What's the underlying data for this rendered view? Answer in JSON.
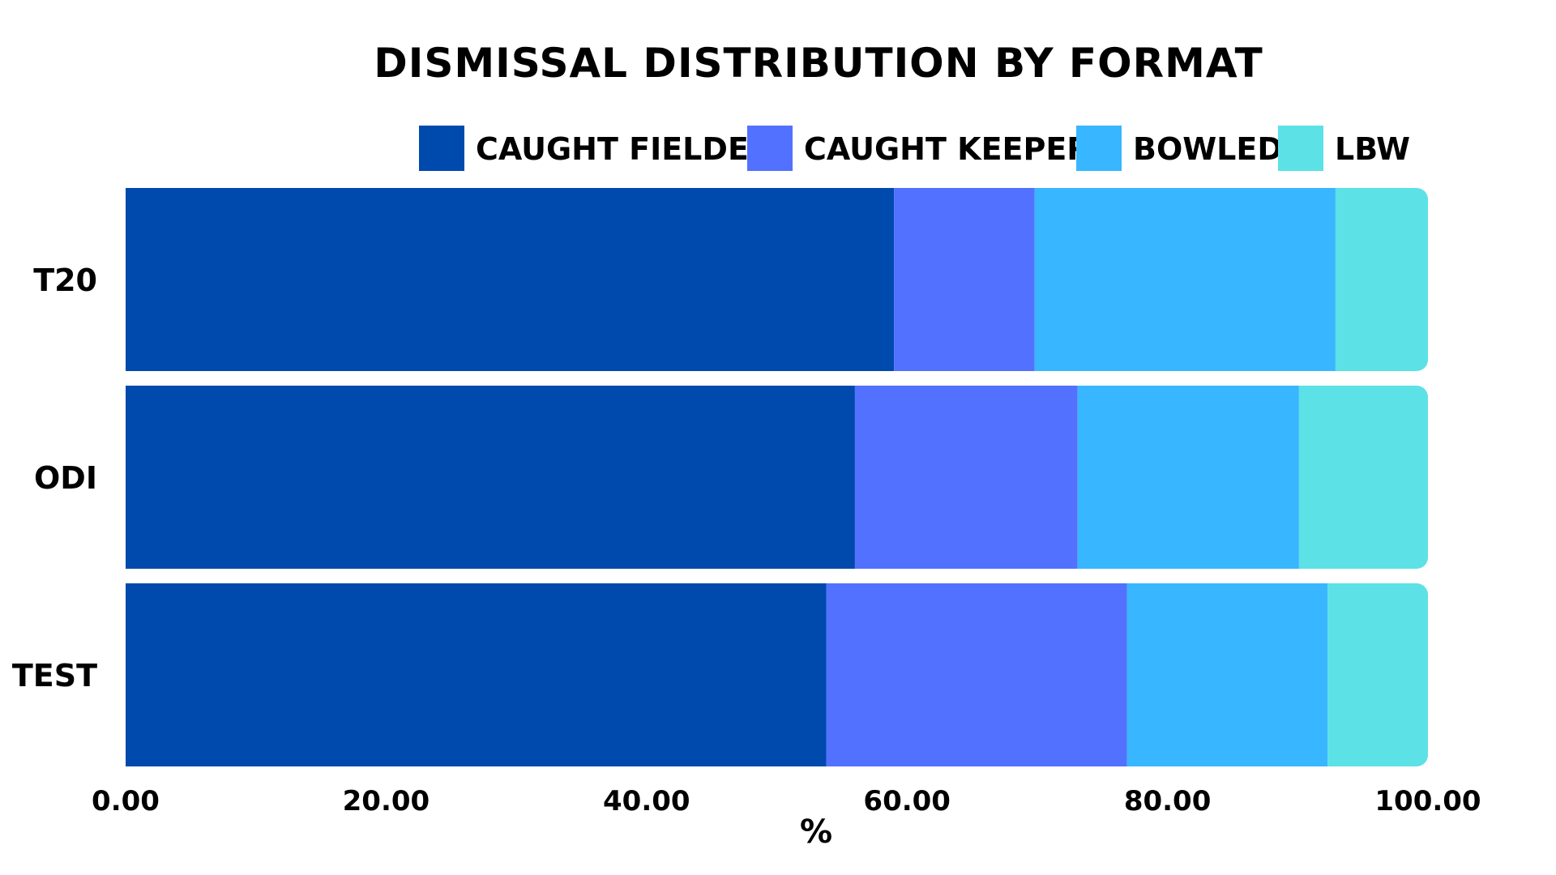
{
  "chart_data": {
    "type": "bar",
    "orientation": "horizontal",
    "stacked": true,
    "title": "DISMISSAL DISTRIBUTION BY FORMAT",
    "xlabel": "%",
    "ylabel": "",
    "xlim": [
      0,
      100
    ],
    "xticks": [
      "0.00",
      "20.00",
      "40.00",
      "60.00",
      "80.00",
      "100.00"
    ],
    "grid": false,
    "legend_position": "top",
    "categories": [
      "T20",
      "ODI",
      "TEST"
    ],
    "series": [
      {
        "name": "CAUGHT FIELDER",
        "color": "#004AAD",
        "values": [
          59.0,
          56.0,
          53.8
        ]
      },
      {
        "name": "CAUGHT KEEPER",
        "color": "#5271FF",
        "values": [
          10.8,
          17.1,
          23.1
        ]
      },
      {
        "name": "BOWLED",
        "color": "#38B6FF",
        "values": [
          23.1,
          17.0,
          15.4
        ]
      },
      {
        "name": "LBW",
        "color": "#5CE1E6",
        "values": [
          7.1,
          9.9,
          7.7
        ]
      }
    ]
  }
}
